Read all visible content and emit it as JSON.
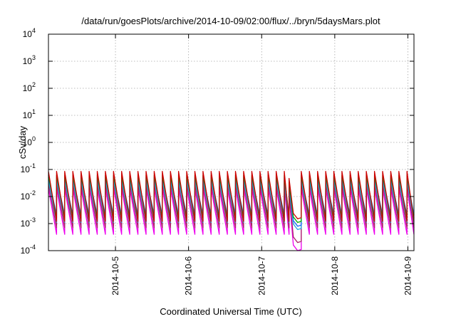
{
  "chart_data": {
    "type": "line",
    "title": "/data/run/goesPlots/archive/2014-10-09/02:00/flux/../bryn/5daysMars.plot",
    "xlabel": "Coordinated Universal Time (UTC)",
    "ylabel": "cSv/day",
    "xlim": [
      "2014-10-04 02:00",
      "2014-10-09 02:00"
    ],
    "ylim": [
      0.0001,
      10000
    ],
    "yscale": "log",
    "grid": true,
    "x_ticks": [
      "2014-10-5",
      "2014-10-6",
      "2014-10-7",
      "2014-10-8",
      "2014-10-9"
    ],
    "y_ticks": [
      {
        "base": "10",
        "exp": "-4"
      },
      {
        "base": "10",
        "exp": "-3"
      },
      {
        "base": "10",
        "exp": "-2"
      },
      {
        "base": "10",
        "exp": "-1"
      },
      {
        "base": "10",
        "exp": "0"
      },
      {
        "base": "10",
        "exp": "1"
      },
      {
        "base": "10",
        "exp": "2"
      },
      {
        "base": "10",
        "exp": "3"
      },
      {
        "base": "10",
        "exp": "4"
      }
    ],
    "sawtooth_period_hours": 2.67,
    "gap": {
      "start": "2014-10-07 09:00",
      "end": "2014-10-07 13:00"
    },
    "series": [
      {
        "color": "#cc0000",
        "peak": 0.085,
        "trough": 0.0012,
        "gap_min": 0.0015
      },
      {
        "color": "#00aa00",
        "peak": 0.06,
        "trough": 0.0016,
        "gap_min": 0.0011
      },
      {
        "color": "#1565ff",
        "peak": 0.05,
        "trough": 0.0021,
        "gap_min": 0.0008
      },
      {
        "color": "#22aadd",
        "peak": 0.04,
        "trough": 0.0011,
        "gap_min": 0.0006
      },
      {
        "color": "#aa2266",
        "peak": 0.03,
        "trough": 0.0007,
        "gap_min": 0.0002
      },
      {
        "color": "#ee00ee",
        "peak": 0.02,
        "trough": 0.0004,
        "gap_min": 0.0001
      }
    ]
  }
}
